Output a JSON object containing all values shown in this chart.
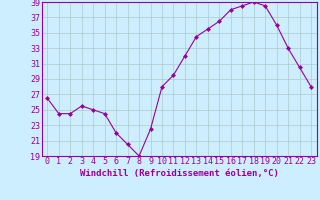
{
  "x": [
    0,
    1,
    2,
    3,
    4,
    5,
    6,
    7,
    8,
    9,
    10,
    11,
    12,
    13,
    14,
    15,
    16,
    17,
    18,
    19,
    20,
    21,
    22,
    23
  ],
  "y": [
    26.5,
    24.5,
    24.5,
    25.5,
    25.0,
    24.5,
    22.0,
    20.5,
    19.0,
    22.5,
    28.0,
    29.5,
    32.0,
    34.5,
    35.5,
    36.5,
    38.0,
    38.5,
    39.0,
    38.5,
    36.0,
    33.0,
    30.5,
    28.0
  ],
  "line_color": "#990099",
  "marker": "D",
  "marker_size": 2,
  "background_color": "#cceeff",
  "grid_color": "#aacccc",
  "xlabel": "Windchill (Refroidissement éolien,°C)",
  "ylim": [
    19,
    39
  ],
  "xlim_min": -0.5,
  "xlim_max": 23.5,
  "yticks": [
    19,
    21,
    23,
    25,
    27,
    29,
    31,
    33,
    35,
    37,
    39
  ],
  "xticks": [
    0,
    1,
    2,
    3,
    4,
    5,
    6,
    7,
    8,
    9,
    10,
    11,
    12,
    13,
    14,
    15,
    16,
    17,
    18,
    19,
    20,
    21,
    22,
    23
  ],
  "xlabel_fontsize": 6.5,
  "tick_fontsize": 6,
  "tick_color": "#990099",
  "label_color": "#990099",
  "spine_color": "#990099",
  "linewidth": 0.8
}
